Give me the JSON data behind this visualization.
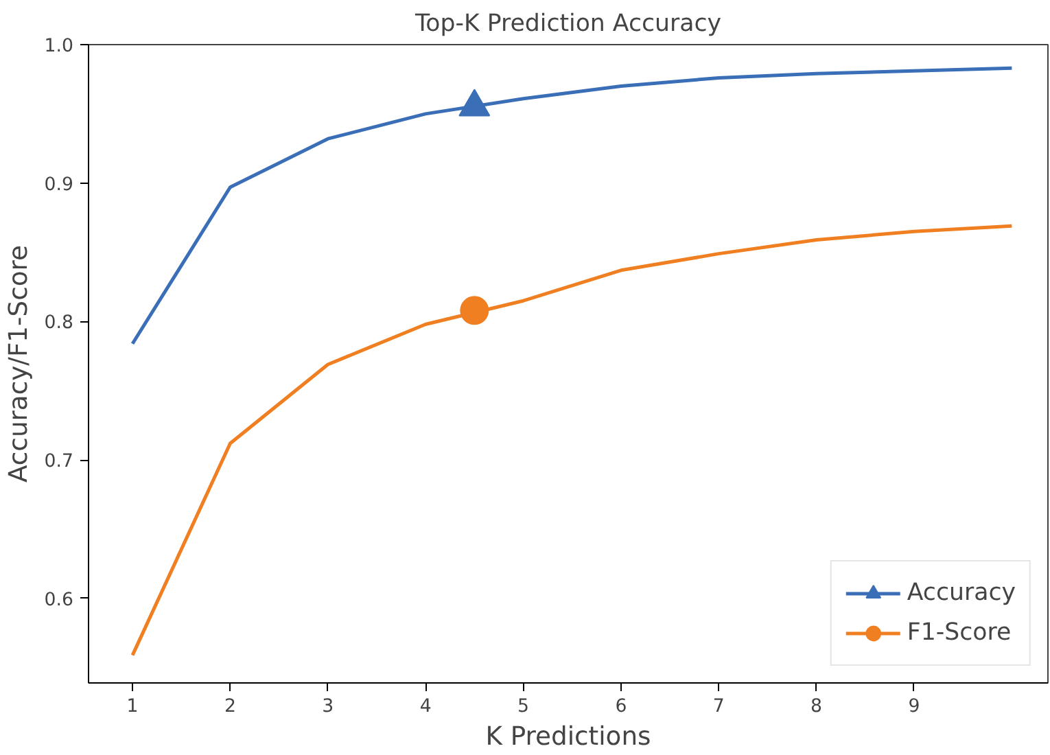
{
  "chart_data": {
    "type": "line",
    "title": "Top-K Prediction Accuracy",
    "xlabel": "K Predictions",
    "ylabel": "Accuracy/F1-Score",
    "x": [
      1,
      2,
      3,
      4,
      5,
      6,
      7,
      8,
      9,
      10
    ],
    "series": [
      {
        "name": "Accuracy",
        "color": "#3a6fb7",
        "values": [
          0.784,
          0.897,
          0.932,
          0.95,
          0.961,
          0.97,
          0.976,
          0.979,
          0.981,
          0.983
        ]
      },
      {
        "name": "F1-Score",
        "color": "#f07f22",
        "values": [
          0.559,
          0.712,
          0.769,
          0.798,
          0.815,
          0.837,
          0.849,
          0.859,
          0.865,
          0.869
        ]
      },
      {
        "type": "scatter",
        "marker": "triangle",
        "color": "#3a6fb7",
        "x": [
          4.5
        ],
        "values": [
          0.955
        ]
      },
      {
        "type": "scatter",
        "marker": "circle",
        "color": "#f07f22",
        "x": [
          4.5
        ],
        "values": [
          0.808
        ]
      }
    ],
    "xlim": [
      0.55,
      10.37
    ],
    "ylim": [
      0.539,
      1.0
    ],
    "xticks": [
      1,
      2,
      3,
      4,
      5,
      6,
      7,
      8,
      9
    ],
    "yticks": [
      0.6,
      0.7,
      0.8,
      0.9,
      {
        "value": 1.0,
        "label": "1.0"
      }
    ],
    "grid": false,
    "legend": "bottom right"
  }
}
